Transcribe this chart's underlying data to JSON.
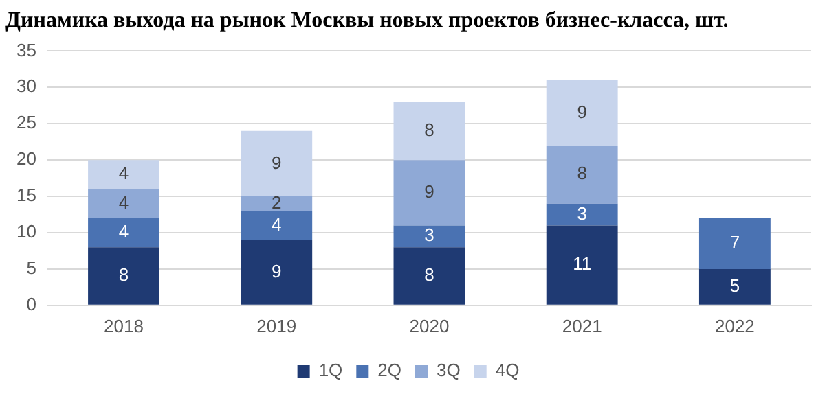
{
  "chart_data": {
    "type": "bar",
    "title": "Динамика выхода на рынок Москвы новых проектов бизнес-класса, шт.",
    "categories": [
      "2018",
      "2019",
      "2020",
      "2021",
      "2022"
    ],
    "stacked": true,
    "series": [
      {
        "name": "1Q",
        "color": "#1f3a73",
        "values": [
          8,
          9,
          8,
          11,
          5
        ]
      },
      {
        "name": "2Q",
        "color": "#4a72b2",
        "values": [
          4,
          4,
          3,
          3,
          7
        ]
      },
      {
        "name": "3Q",
        "color": "#8fa9d6",
        "values": [
          4,
          2,
          9,
          8,
          null
        ]
      },
      {
        "name": "4Q",
        "color": "#c7d4ec",
        "values": [
          4,
          9,
          8,
          9,
          null
        ]
      }
    ],
    "ylim": [
      0,
      35
    ],
    "yticks": [
      0,
      5,
      10,
      15,
      20,
      25,
      30,
      35
    ],
    "grid": "y",
    "legend": "bottom",
    "data_labels": true
  }
}
